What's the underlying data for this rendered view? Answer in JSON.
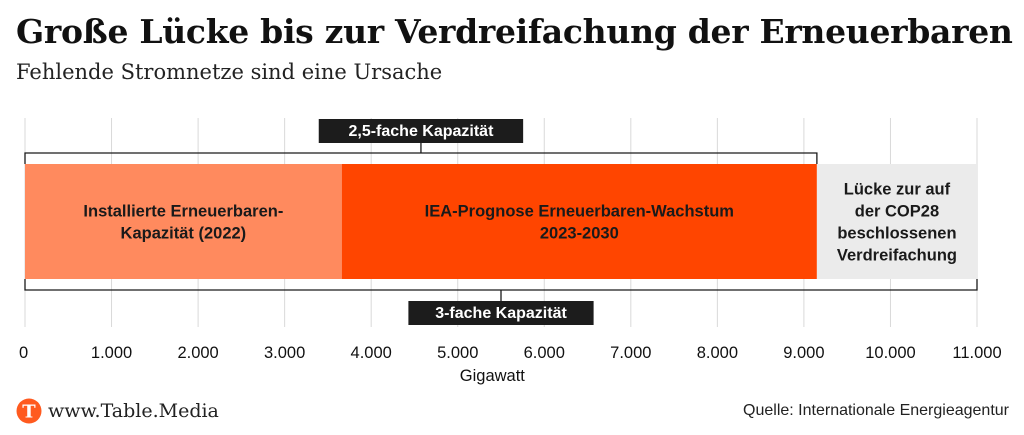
{
  "title": "Große Lücke bis zur Verdreifachung der Erneuerbaren",
  "subtitle": "Fehlende Stromnetze sind eine Ursache",
  "footer": {
    "url": "www.Table.Media",
    "source": "Quelle: Internationale Energieagentur",
    "logo_letter": "T",
    "logo_color": "#ff5a1f"
  },
  "chart_data": {
    "type": "bar",
    "orientation": "horizontal",
    "stacked": true,
    "xlabel": "Gigawatt",
    "xlim": [
      0,
      11000
    ],
    "ticks": [
      {
        "value": 0,
        "label": "0"
      },
      {
        "value": 1000,
        "label": "1.000"
      },
      {
        "value": 2000,
        "label": "2.000"
      },
      {
        "value": 3000,
        "label": "3.000"
      },
      {
        "value": 4000,
        "label": "4.000"
      },
      {
        "value": 5000,
        "label": "5.000"
      },
      {
        "value": 6000,
        "label": "6.000"
      },
      {
        "value": 7000,
        "label": "7.000"
      },
      {
        "value": 8000,
        "label": "8.000"
      },
      {
        "value": 9000,
        "label": "9.000"
      },
      {
        "value": 10000,
        "label": "10.000"
      },
      {
        "value": 11000,
        "label": "11.000"
      }
    ],
    "grid": true,
    "segments": [
      {
        "label": [
          "Installierte Erneuerbaren-",
          "Kapazität (2022)"
        ],
        "start": 0,
        "end": 3660,
        "color": "#ff8a5e",
        "text_color": "#1a1a1a"
      },
      {
        "label": [
          "IEA-Prognose Erneuerbaren-Wachstum",
          "2023-2030"
        ],
        "start": 3660,
        "end": 9150,
        "color": "#ff4500",
        "text_color": "#1a1a1a"
      },
      {
        "label": [
          "Lücke zur auf",
          "der COP28",
          "beschlossenen",
          "Verdreifachung"
        ],
        "start": 9150,
        "end": 11000,
        "color": "#ebebeb",
        "text_color": "#1a1a1a"
      }
    ],
    "brackets": [
      {
        "label": "2,5-fache Kapazität",
        "start": 0,
        "end": 9150,
        "position": "top"
      },
      {
        "label": "3-fache Kapazität",
        "start": 0,
        "end": 11000,
        "position": "bottom"
      }
    ]
  }
}
